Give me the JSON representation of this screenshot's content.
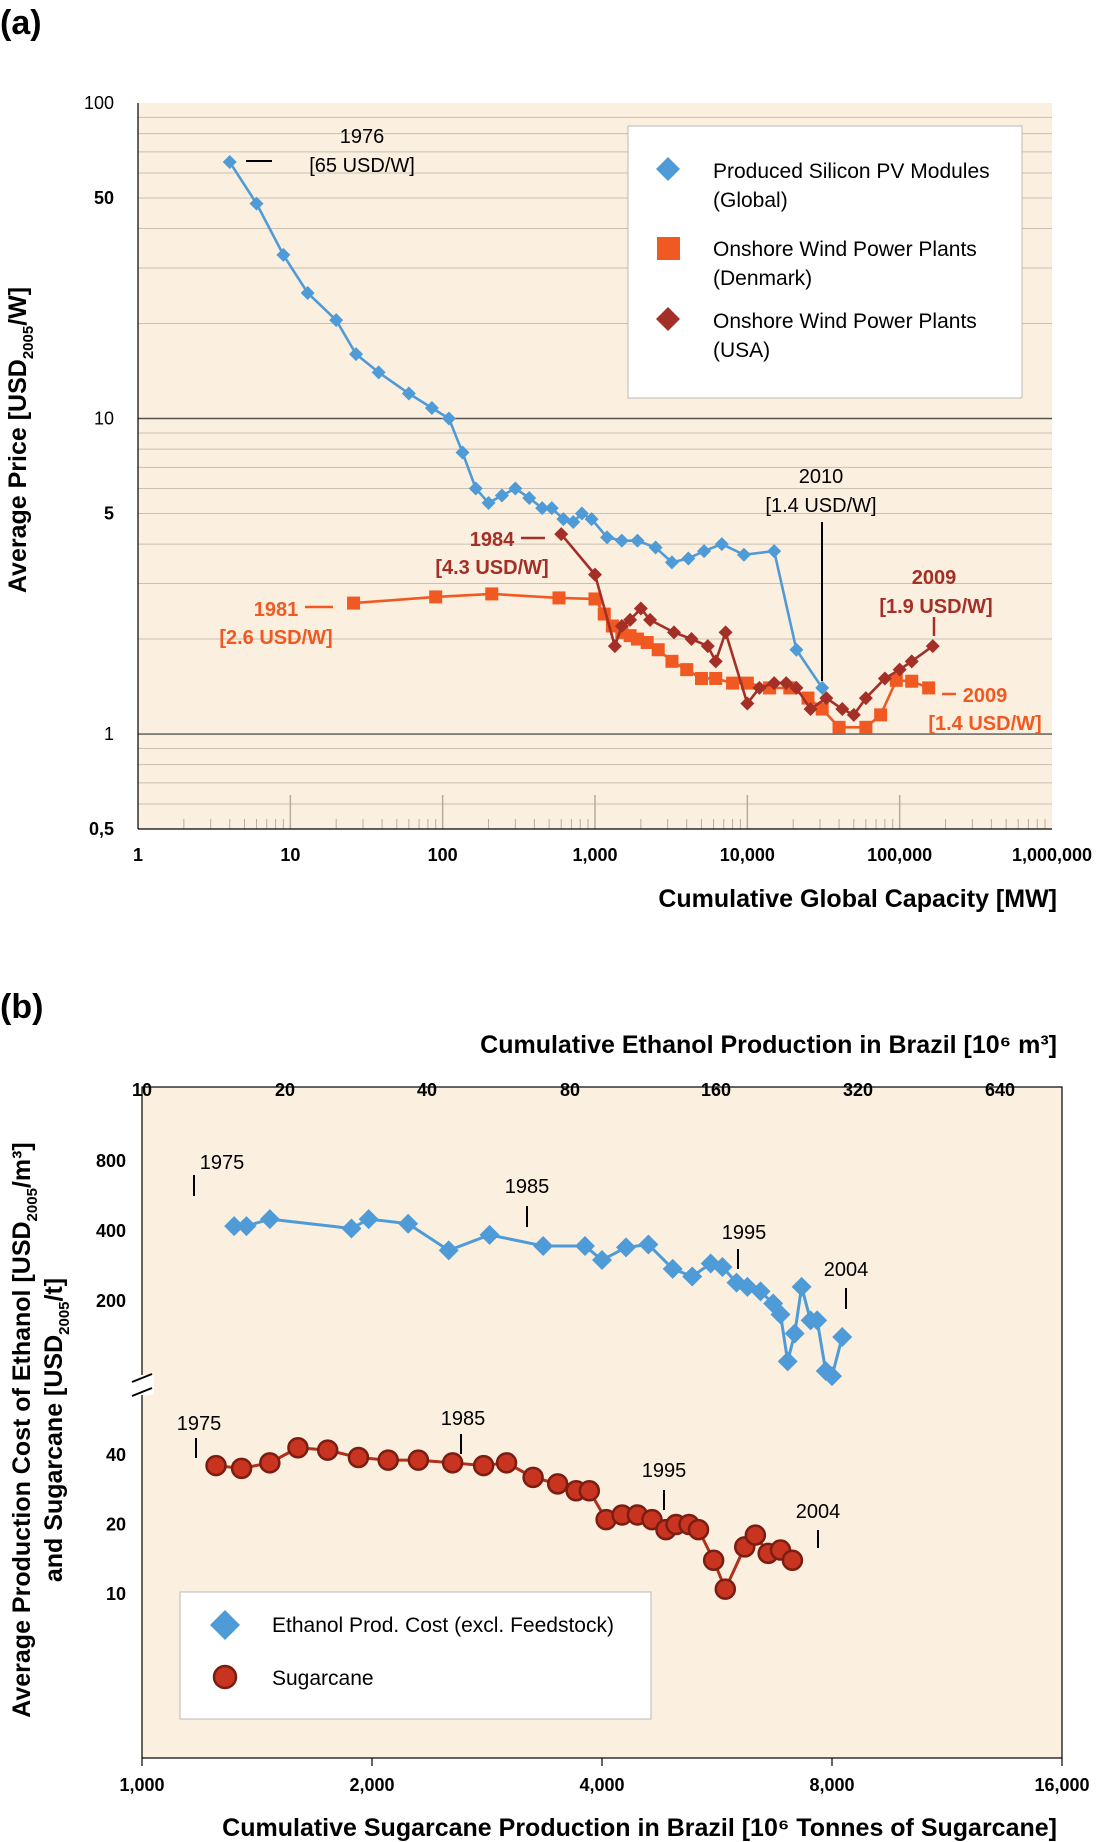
{
  "panel_a_label": "(a)",
  "panel_b_label": "(b)",
  "chart_data": [
    {
      "type": "line",
      "panel": "(a)",
      "xlabel": "Cumulative Global Capacity [MW]",
      "ylabel": "Average Price [USD2005/W]",
      "ylabel_main": "Average Price [USD",
      "ylabel_sub": "2005",
      "ylabel_end": "/W]",
      "x_scale": "log",
      "y_scale": "log",
      "xlim": [
        1,
        1000000
      ],
      "ylim": [
        0.5,
        100
      ],
      "x_ticks": [
        {
          "v": 1,
          "label": "1"
        },
        {
          "v": 10,
          "label": "10"
        },
        {
          "v": 100,
          "label": "100"
        },
        {
          "v": 1000,
          "label": "1,000"
        },
        {
          "v": 10000,
          "label": "10,000"
        },
        {
          "v": 100000,
          "label": "100,000"
        },
        {
          "v": 1000000,
          "label": "1,000,000"
        }
      ],
      "y_ticks": [
        {
          "v": 0.5,
          "label": "0,5"
        },
        {
          "v": 1,
          "label": "1"
        },
        {
          "v": 5,
          "label": "5"
        },
        {
          "v": 10,
          "label": "10"
        },
        {
          "v": 50,
          "label": "50"
        },
        {
          "v": 100,
          "label": "100"
        }
      ],
      "grid": true,
      "legend_position": "top-right",
      "legend": [
        {
          "series": 0,
          "line1": "Produced Silicon PV Modules",
          "line2": "(Global)"
        },
        {
          "series": 1,
          "line1": "Onshore Wind Power Plants",
          "line2": "(Denmark)"
        },
        {
          "series": 2,
          "line1": "Onshore Wind Power Plants",
          "line2": "(USA)"
        }
      ],
      "series": [
        {
          "name": "Produced Silicon PV Modules (Global)",
          "color": "#4f9bd8",
          "marker": "diamond",
          "x": [
            4,
            6,
            9,
            13,
            20,
            27,
            38,
            60,
            85,
            110,
            135,
            165,
            200,
            245,
            300,
            370,
            450,
            520,
            620,
            720,
            820,
            950,
            1200,
            1500,
            1900,
            2500,
            3200,
            4100,
            5200,
            6800,
            9500,
            15000,
            21000,
            31000
          ],
          "y": [
            65,
            48,
            33,
            25,
            20.5,
            16,
            14,
            12,
            10.8,
            10,
            7.8,
            6,
            5.4,
            5.7,
            6,
            5.6,
            5.2,
            5.2,
            4.8,
            4.7,
            5,
            4.8,
            4.2,
            4.1,
            4.1,
            3.9,
            3.5,
            3.6,
            3.8,
            4,
            3.7,
            3.8,
            1.85,
            1.4
          ]
        },
        {
          "name": "Onshore Wind Power Plants (Denmark)",
          "color": "#f05a22",
          "marker": "square",
          "x": [
            26,
            90,
            210,
            580,
            1000,
            1150,
            1300,
            1500,
            1700,
            1900,
            2200,
            2600,
            3200,
            4000,
            5000,
            6200,
            8000,
            10000,
            14000,
            19000,
            25000,
            31000,
            40000,
            60000,
            75000,
            95000,
            120000,
            155000
          ],
          "y": [
            2.6,
            2.72,
            2.78,
            2.7,
            2.68,
            2.4,
            2.2,
            2.1,
            2.05,
            2,
            1.95,
            1.85,
            1.7,
            1.6,
            1.5,
            1.5,
            1.45,
            1.45,
            1.4,
            1.4,
            1.3,
            1.2,
            1.05,
            1.05,
            1.15,
            1.48,
            1.47,
            1.4
          ]
        },
        {
          "name": "Onshore Wind Power Plants (USA)",
          "color": "#a42f26",
          "marker": "diamond",
          "x": [
            600,
            1000,
            1350,
            1500,
            1700,
            2000,
            2300,
            3300,
            4300,
            5500,
            6200,
            7200,
            10000,
            12000,
            15000,
            18000,
            21000,
            26000,
            33000,
            42000,
            50000,
            60000,
            80000,
            100000,
            120000,
            165000
          ],
          "y": [
            4.3,
            3.2,
            1.9,
            2.2,
            2.3,
            2.5,
            2.3,
            2.1,
            2,
            1.9,
            1.7,
            2.1,
            1.25,
            1.4,
            1.45,
            1.45,
            1.4,
            1.2,
            1.3,
            1.2,
            1.15,
            1.3,
            1.5,
            1.6,
            1.7,
            1.9
          ]
        }
      ],
      "annotations": [
        {
          "year": "1976",
          "value": "[65 USD/W]",
          "color": "#000000"
        },
        {
          "year": "1981",
          "value": "[2.6 USD/W]",
          "color": "#f05a22"
        },
        {
          "year": "1984",
          "value": "[4.3 USD/W]",
          "color": "#a42f26"
        },
        {
          "year": "2010",
          "value": "[1.4 USD/W]",
          "color": "#000000"
        },
        {
          "year": "2009",
          "value": "[1.9 USD/W]",
          "color": "#a42f26"
        },
        {
          "year": "2009",
          "value": "[1.4 USD/W]",
          "color": "#f05a22"
        }
      ]
    },
    {
      "type": "line",
      "panel": "(b)",
      "xlabel": "Cumulative Sugarcane Production in Brazil [10⁶  Tonnes of Sugarcane]",
      "xlabel_top": "Cumulative Ethanol Production in Brazil [10⁶ m³]",
      "ylabel_line1": "Average Production Cost of Ethanol [USD2005/m³]",
      "ylabel_line2": "and Sugarcane [USD2005/t]",
      "ylabel1_main": "Average Production Cost of Ethanol [USD",
      "ylabel1_sub": "2005",
      "ylabel1_end": "/m³]",
      "ylabel2_main": "and Sugarcane [USD",
      "ylabel2_sub": "2005",
      "ylabel2_end": "/t]",
      "x_scale": "log",
      "y_scale": "log (broken axis)",
      "xlim": [
        1000,
        16000
      ],
      "x_ticks": [
        {
          "v": 1000,
          "label": "1,000"
        },
        {
          "v": 2000,
          "label": "2,000"
        },
        {
          "v": 4000,
          "label": "4,000"
        },
        {
          "v": 8000,
          "label": "8,000"
        },
        {
          "v": 16000,
          "label": "16,000"
        }
      ],
      "x_top_ticks": [
        {
          "label": "10"
        },
        {
          "label": "20"
        },
        {
          "label": "40"
        },
        {
          "label": "80"
        },
        {
          "label": "160"
        },
        {
          "label": "320"
        },
        {
          "label": "640"
        }
      ],
      "y_upper_ticks": [
        {
          "v": 200,
          "label": "200"
        },
        {
          "v": 400,
          "label": "400"
        },
        {
          "v": 800,
          "label": "800"
        }
      ],
      "y_lower_ticks": [
        {
          "v": 10,
          "label": "10"
        },
        {
          "v": 20,
          "label": "20"
        },
        {
          "v": 40,
          "label": "40"
        }
      ],
      "grid": false,
      "legend_position": "bottom-left",
      "legend": [
        {
          "series": 0,
          "label": "Ethanol Prod. Cost (excl. Feedstock)"
        },
        {
          "series": 1,
          "label": "Sugarcane"
        }
      ],
      "series": [
        {
          "name": "Ethanol Prod. Cost (excl. Feedstock)",
          "color": "#4f9bd8",
          "marker": "diamond",
          "x": [
            1320,
            1370,
            1470,
            1880,
            1980,
            2230,
            2520,
            2850,
            3350,
            3800,
            4000,
            4300,
            4600,
            4950,
            5250,
            5550,
            5750,
            6000,
            6200,
            6450,
            6700,
            6850,
            7000,
            7150,
            7300,
            7500,
            7650,
            7850,
            8000,
            8250
          ],
          "y": [
            420,
            420,
            450,
            410,
            450,
            430,
            330,
            385,
            345,
            345,
            300,
            340,
            350,
            275,
            255,
            290,
            280,
            240,
            230,
            220,
            195,
            175,
            110,
            145,
            230,
            165,
            165,
            100,
            95,
            140
          ]
        },
        {
          "name": "Sugarcane",
          "color": "#c8341f",
          "marker": "circle",
          "x": [
            1250,
            1350,
            1470,
            1600,
            1750,
            1920,
            2100,
            2300,
            2550,
            2800,
            3000,
            3250,
            3500,
            3700,
            3850,
            4050,
            4250,
            4450,
            4650,
            4850,
            5000,
            5200,
            5350,
            5600,
            5800,
            6150,
            6350,
            6600,
            6850,
            7100
          ],
          "y": [
            36,
            35,
            37,
            43,
            42,
            39,
            38,
            38,
            37,
            36,
            37,
            32,
            30,
            28,
            28,
            21,
            22,
            22,
            21,
            19,
            20,
            20,
            19,
            14,
            10.5,
            16,
            18,
            15,
            15.5,
            14
          ]
        }
      ],
      "annotations": [
        {
          "label": "1975",
          "series": 0
        },
        {
          "label": "1985",
          "series": 0
        },
        {
          "label": "1995",
          "series": 0
        },
        {
          "label": "2004",
          "series": 0
        },
        {
          "label": "1975",
          "series": 1
        },
        {
          "label": "1985",
          "series": 1
        },
        {
          "label": "1995",
          "series": 1
        },
        {
          "label": "2004",
          "series": 1
        }
      ]
    }
  ]
}
